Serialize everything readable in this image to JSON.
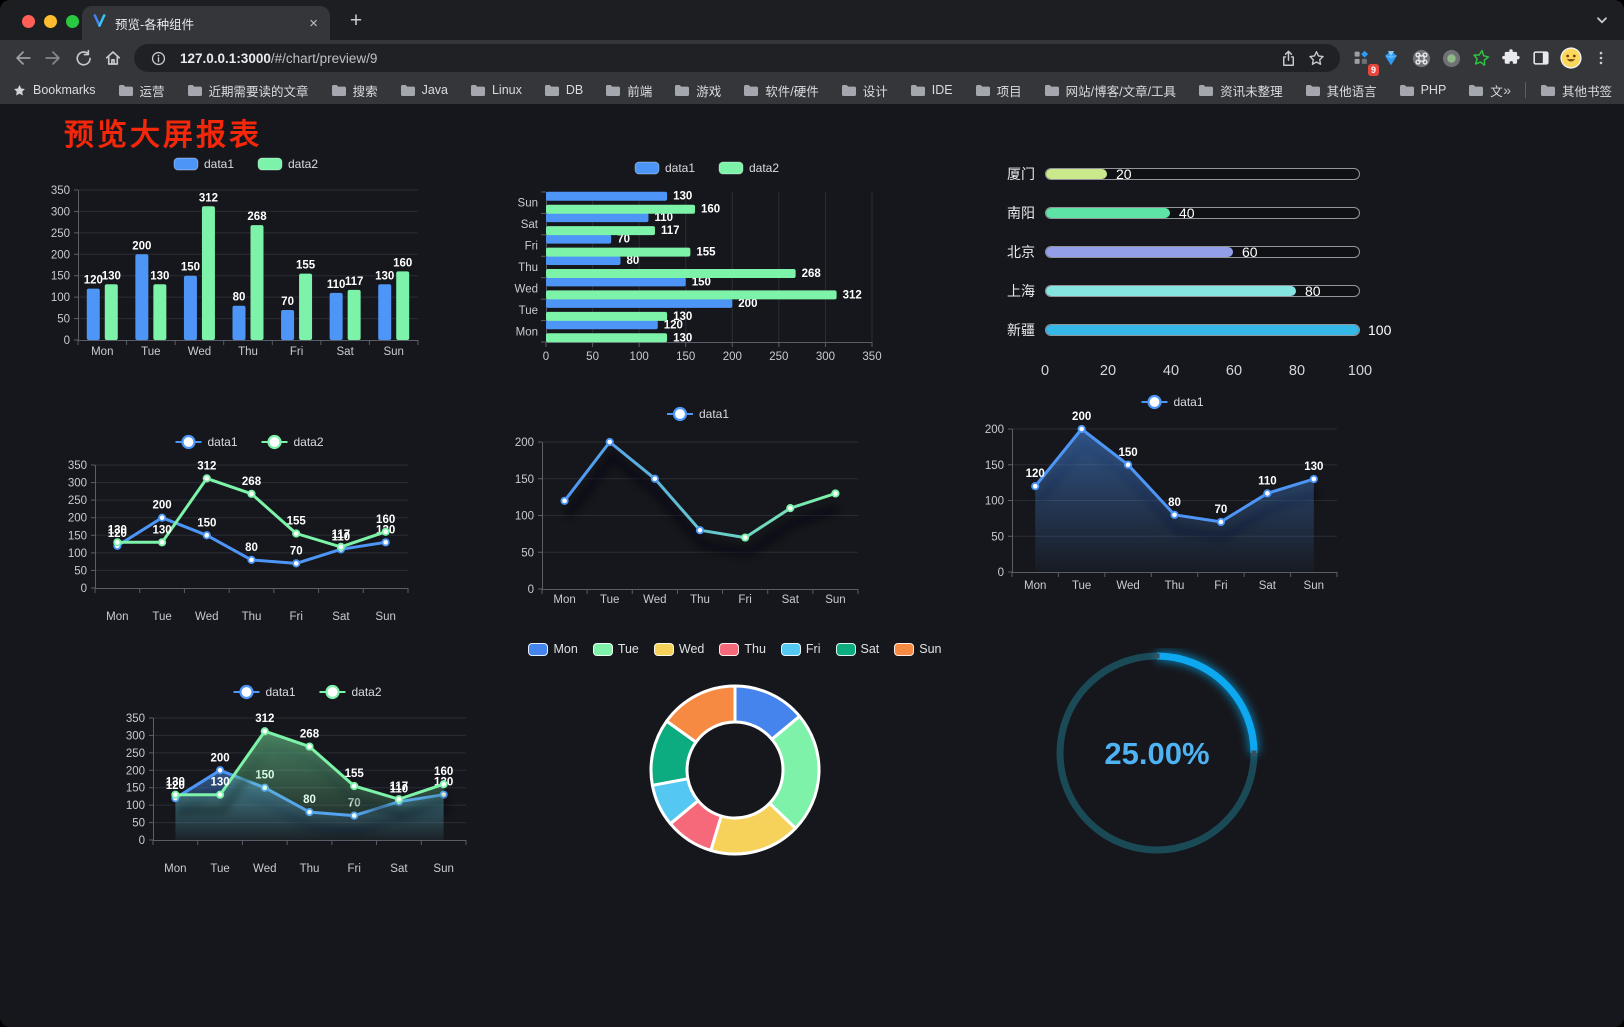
{
  "window": {
    "tab_title": "预览-各种组件",
    "url": {
      "host": "127.0.0.1",
      "port": ":3000",
      "path": "/#/chart/preview/9"
    },
    "extension_badge": "9",
    "bookmarks_label": "Bookmarks",
    "bookmarks": [
      "运营",
      "近期需要读的文章",
      "搜索",
      "Java",
      "Linux",
      "DB",
      "前端",
      "游戏",
      "软件/硬件",
      "设计",
      "IDE",
      "项目",
      "网站/博客/文章/工具",
      "资讯未整理",
      "其他语言",
      "PHP",
      "文件服务器"
    ],
    "bookmarks_overflow": "»",
    "other_bookmarks": "其他书签"
  },
  "page": {
    "title": "预览大屏报表"
  },
  "chart_data": [
    {
      "id": "bar-grouped",
      "type": "bar",
      "categories": [
        "Mon",
        "Tue",
        "Wed",
        "Thu",
        "Fri",
        "Sat",
        "Sun"
      ],
      "series": [
        {
          "name": "data1",
          "values": [
            120,
            200,
            150,
            80,
            70,
            110,
            130
          ],
          "color": "#4D96F7"
        },
        {
          "name": "data2",
          "values": [
            130,
            130,
            312,
            268,
            155,
            117,
            160
          ],
          "color": "#7DF2A9"
        }
      ],
      "ylim": [
        0,
        350
      ],
      "ytick_step": 50,
      "legend_position": "top",
      "value_labels": true,
      "grid": true
    },
    {
      "id": "bar-horizontal",
      "type": "bar",
      "orientation": "horizontal",
      "categories": [
        "Mon",
        "Tue",
        "Wed",
        "Thu",
        "Fri",
        "Sat",
        "Sun"
      ],
      "series": [
        {
          "name": "data1",
          "values": [
            120,
            200,
            150,
            80,
            70,
            110,
            130
          ],
          "color": "#4D96F7"
        },
        {
          "name": "data2",
          "values": [
            130,
            130,
            312,
            268,
            155,
            117,
            160
          ],
          "color": "#7DF2A9"
        }
      ],
      "xlim": [
        0,
        350
      ],
      "xtick_step": 50,
      "legend_position": "top",
      "value_labels": true,
      "grid": true
    },
    {
      "id": "progress-list",
      "type": "bar",
      "orientation": "progress",
      "categories": [
        "厦门",
        "南阳",
        "北京",
        "上海",
        "新疆"
      ],
      "values": [
        20,
        40,
        60,
        80,
        100
      ],
      "colors": [
        "#C9E98B",
        "#5CE3A5",
        "#939FE9",
        "#86E5E1",
        "#35B8E8"
      ],
      "xlim": [
        0,
        100
      ],
      "xticks": [
        0,
        20,
        40,
        60,
        80,
        100
      ],
      "value_labels": true
    },
    {
      "id": "line-dual",
      "type": "line",
      "categories": [
        "Mon",
        "Tue",
        "Wed",
        "Thu",
        "Fri",
        "Sat",
        "Sun"
      ],
      "series": [
        {
          "name": "data1",
          "values": [
            120,
            200,
            150,
            80,
            70,
            110,
            130
          ],
          "color": "#4D96F7"
        },
        {
          "name": "data2",
          "values": [
            130,
            130,
            312,
            268,
            155,
            117,
            160
          ],
          "color": "#7DF2A9"
        }
      ],
      "ylim": [
        0,
        350
      ],
      "ytick_step": 50,
      "legend_position": "top",
      "value_labels": true,
      "grid": true
    },
    {
      "id": "line-gradient",
      "type": "line",
      "categories": [
        "Mon",
        "Tue",
        "Wed",
        "Thu",
        "Fri",
        "Sat",
        "Sun"
      ],
      "series": [
        {
          "name": "data1",
          "values": [
            120,
            200,
            150,
            80,
            70,
            110,
            130
          ],
          "gradient": [
            "#4D96F7",
            "#7DF2A9"
          ]
        }
      ],
      "ylim": [
        0,
        200
      ],
      "ytick_step": 50,
      "legend_position": "top",
      "value_labels": false,
      "shadow": true,
      "grid": true
    },
    {
      "id": "line-area",
      "type": "area",
      "categories": [
        "Mon",
        "Tue",
        "Wed",
        "Thu",
        "Fri",
        "Sat",
        "Sun"
      ],
      "series": [
        {
          "name": "data1",
          "values": [
            120,
            200,
            150,
            80,
            70,
            110,
            130
          ],
          "color": "#4D96F7",
          "area": true
        }
      ],
      "ylim": [
        0,
        200
      ],
      "ytick_step": 50,
      "legend_position": "top",
      "value_labels": true,
      "shadow": true,
      "grid": true
    },
    {
      "id": "area-dual",
      "type": "area",
      "categories": [
        "Mon",
        "Tue",
        "Wed",
        "Thu",
        "Fri",
        "Sat",
        "Sun"
      ],
      "series": [
        {
          "name": "data1",
          "values": [
            120,
            200,
            150,
            80,
            70,
            110,
            130
          ],
          "color": "#4D96F7",
          "area": true
        },
        {
          "name": "data2",
          "values": [
            130,
            130,
            312,
            268,
            155,
            117,
            160
          ],
          "color": "#7DF2A9",
          "area": true
        }
      ],
      "ylim": [
        0,
        350
      ],
      "ytick_step": 50,
      "legend_position": "top",
      "value_labels": true,
      "shadow": true,
      "grid": true
    },
    {
      "id": "donut",
      "type": "pie",
      "labels": [
        "Mon",
        "Tue",
        "Wed",
        "Thu",
        "Fri",
        "Sat",
        "Sun"
      ],
      "values": [
        120,
        200,
        150,
        80,
        70,
        110,
        130
      ],
      "colors": [
        "#4584EC",
        "#7FF2AA",
        "#F6D25B",
        "#F6697B",
        "#55C8F2",
        "#0CAC80",
        "#F78A42"
      ],
      "inner_ratio": 0.57,
      "legend_position": "top"
    },
    {
      "id": "gauge",
      "type": "gauge",
      "value": 25,
      "display": "25.00%",
      "color": "#0FA8F0",
      "track_color": "#1B4A57"
    }
  ]
}
